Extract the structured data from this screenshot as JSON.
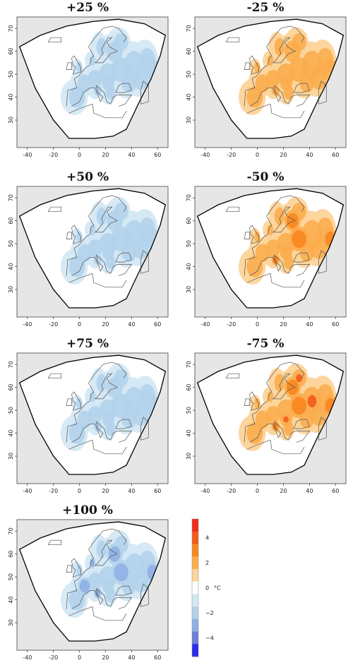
{
  "panels": [
    {
      "title": "+25 %",
      "sign": -1,
      "intensity": 1
    },
    {
      "title": "-25 %",
      "sign": 1,
      "intensity": 1
    },
    {
      "title": "+50 %",
      "sign": -1,
      "intensity": 1
    },
    {
      "title": "-50 %",
      "sign": 1,
      "intensity": 2
    },
    {
      "title": "+75 %",
      "sign": -1,
      "intensity": 1
    },
    {
      "title": "-75 %",
      "sign": 1,
      "intensity": 3
    },
    {
      "title": "+100 %",
      "sign": -1,
      "intensity": 2
    }
  ],
  "axes": {
    "x_ticks": [
      "-40",
      "-20",
      "0",
      "20",
      "40",
      "60"
    ],
    "y_ticks": [
      "30",
      "40",
      "50",
      "60",
      "70"
    ]
  },
  "colorbar": {
    "labels": [
      "4",
      "2",
      "0",
      "−2",
      "−4"
    ],
    "unit": "°C",
    "colors": [
      "#ee2a1c",
      "#f45a1b",
      "#f8861f",
      "#fbad4e",
      "#fdd49a",
      "#ffffff",
      "#d4e8f4",
      "#b3d3ec",
      "#8fb0e4",
      "#6a7fd9",
      "#2b2bea"
    ]
  },
  "colors": {
    "background": "#e6e6e6",
    "domain": "#ffffff",
    "warm_light": "#fdd49a",
    "warm_mid": "#fbad4e",
    "warm_strong": "#f8861f",
    "warm_hot": "#f45a1b",
    "cool_light": "#d4e8f4",
    "cool_mid": "#b3d3ec",
    "cool_strong": "#8fb0e4"
  }
}
